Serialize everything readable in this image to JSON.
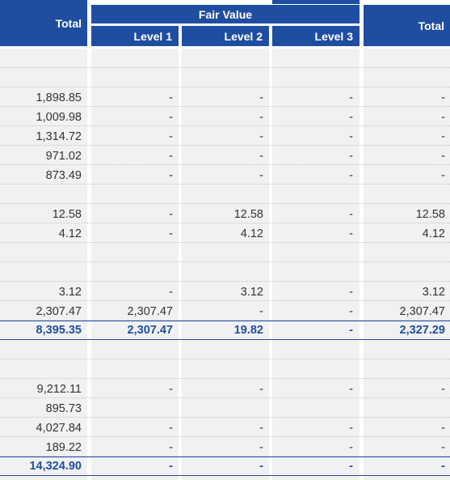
{
  "header": {
    "total_left": "Total",
    "fair_value": "Fair Value",
    "level1": "Level 1",
    "level2": "Level 2",
    "level3": "Level 3",
    "total_right": "Total"
  },
  "rows": [
    {
      "cells": [
        "",
        "",
        "",
        "",
        ""
      ],
      "total": false
    },
    {
      "cells": [
        "",
        "",
        "",
        "",
        ""
      ],
      "total": false
    },
    {
      "cells": [
        "1,898.85",
        "-",
        "-",
        "-",
        "-"
      ],
      "total": false
    },
    {
      "cells": [
        "1,009.98",
        "-",
        "-",
        "-",
        "-"
      ],
      "total": false
    },
    {
      "cells": [
        "1,314.72",
        "-",
        "-",
        "-",
        "-"
      ],
      "total": false
    },
    {
      "cells": [
        "971.02",
        "-",
        "-",
        "-",
        "-"
      ],
      "total": false
    },
    {
      "cells": [
        "873.49",
        "-",
        "-",
        "-",
        "-"
      ],
      "total": false
    },
    {
      "cells": [
        "",
        "",
        "",
        "",
        ""
      ],
      "total": false
    },
    {
      "cells": [
        "12.58",
        "-",
        "12.58",
        "-",
        "12.58"
      ],
      "total": false
    },
    {
      "cells": [
        "4.12",
        "-",
        "4.12",
        "-",
        "4.12"
      ],
      "total": false
    },
    {
      "cells": [
        "",
        "",
        "",
        "",
        ""
      ],
      "total": false
    },
    {
      "cells": [
        "",
        "",
        "",
        "",
        ""
      ],
      "total": false
    },
    {
      "cells": [
        "3.12",
        "-",
        "3.12",
        "-",
        "3.12"
      ],
      "total": false
    },
    {
      "cells": [
        "2,307.47",
        "2,307.47",
        "-",
        "-",
        "2,307.47"
      ],
      "total": false
    },
    {
      "cells": [
        "8,395.35",
        "2,307.47",
        "19.82",
        "-",
        "2,327.29"
      ],
      "total": true
    },
    {
      "cells": [
        "",
        "",
        "",
        "",
        ""
      ],
      "total": false
    },
    {
      "cells": [
        "",
        "",
        "",
        "",
        ""
      ],
      "total": false
    },
    {
      "cells": [
        "9,212.11",
        "-",
        "-",
        "-",
        "-"
      ],
      "total": false
    },
    {
      "cells": [
        "895.73",
        "",
        "",
        "",
        ""
      ],
      "total": false
    },
    {
      "cells": [
        "4,027.84",
        "-",
        "-",
        "-",
        "-"
      ],
      "total": false
    },
    {
      "cells": [
        "189.22",
        "-",
        "-",
        "-",
        "-"
      ],
      "total": false
    },
    {
      "cells": [
        "14,324.90",
        "-",
        "-",
        "-",
        "-"
      ],
      "total": true
    }
  ],
  "colors": {
    "header_bg": "#1f4ea1",
    "column_bg": "#f1f1f1",
    "total_text": "#1f4ea1"
  }
}
